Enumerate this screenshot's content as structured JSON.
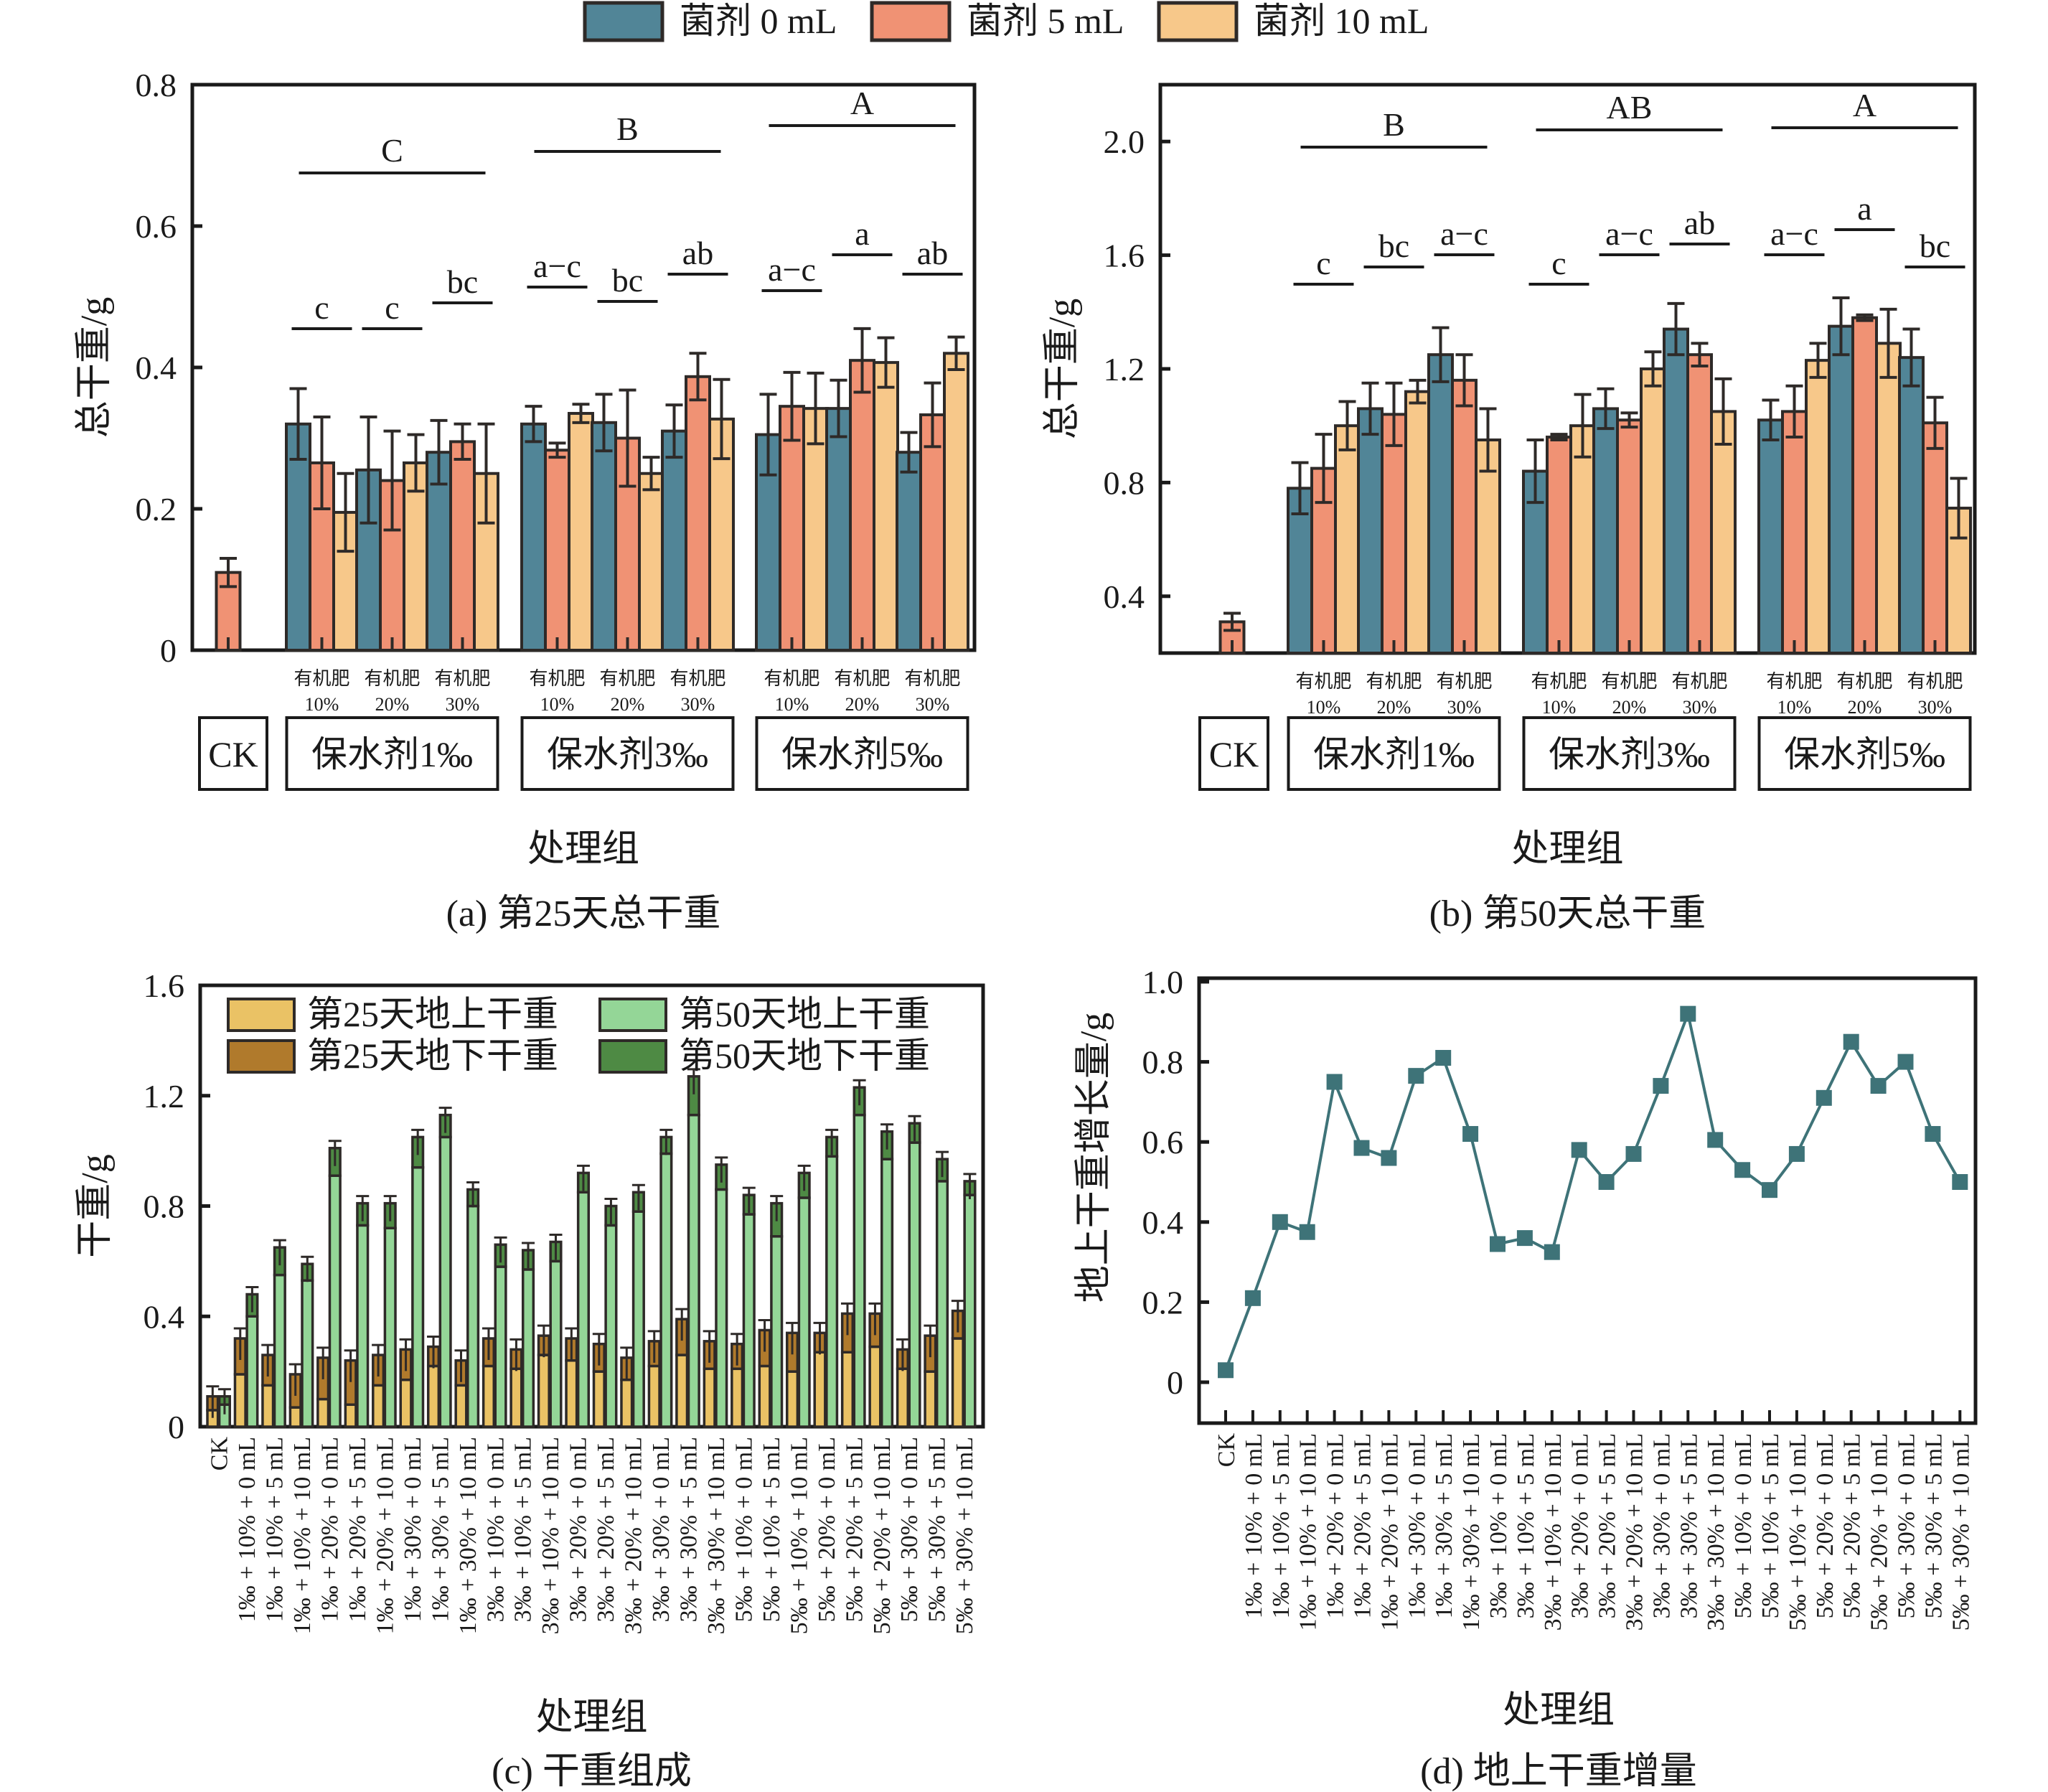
{
  "legend_top": {
    "items": [
      {
        "label": "菌剂 0 mL",
        "color": "#518597"
      },
      {
        "label": "菌剂 5 mL",
        "color": "#F09274"
      },
      {
        "label": "菌剂 10 mL",
        "color": "#F7C88A"
      }
    ]
  },
  "chart_data": [
    {
      "id": "a",
      "type": "bar",
      "title": "(a) 第25天总干重",
      "xlabel": "处理组",
      "ylabel": "总干重/g",
      "ylim": [
        0,
        0.8
      ],
      "yticks": [
        0,
        0.2,
        0.4,
        0.6,
        0.8
      ],
      "ytick_labels": [
        "0",
        "0.2",
        "0.4",
        "0.6",
        "0.8"
      ],
      "series_names": [
        "菌剂 0 mL",
        "菌剂 5 mL",
        "菌剂 10 mL"
      ],
      "ck": {
        "value": 0.11,
        "err": 0.02
      },
      "groups": [
        {
          "label": "保水剂1‰",
          "big_letter": "C",
          "subgroups": [
            {
              "label_top": "有机肥",
              "label_bottom": "10%",
              "letter": "c",
              "values": [
                0.32,
                0.265,
                0.195
              ],
              "errs": [
                0.05,
                0.065,
                0.055
              ]
            },
            {
              "label_top": "有机肥",
              "label_bottom": "20%",
              "letter": "c",
              "values": [
                0.255,
                0.24,
                0.265
              ],
              "errs": [
                0.075,
                0.07,
                0.04
              ]
            },
            {
              "label_top": "有机肥",
              "label_bottom": "30%",
              "letter": "bc",
              "values": [
                0.28,
                0.295,
                0.25
              ],
              "errs": [
                0.045,
                0.025,
                0.07
              ]
            }
          ]
        },
        {
          "label": "保水剂3‰",
          "big_letter": "B",
          "subgroups": [
            {
              "label_top": "有机肥",
              "label_bottom": "10%",
              "letter": "a−c",
              "values": [
                0.32,
                0.283,
                0.335
              ],
              "errs": [
                0.025,
                0.01,
                0.013
              ]
            },
            {
              "label_top": "有机肥",
              "label_bottom": "20%",
              "letter": "bc",
              "values": [
                0.322,
                0.3,
                0.25
              ],
              "errs": [
                0.04,
                0.068,
                0.023
              ]
            },
            {
              "label_top": "有机肥",
              "label_bottom": "30%",
              "letter": "ab",
              "values": [
                0.31,
                0.387,
                0.327
              ],
              "errs": [
                0.037,
                0.033,
                0.056
              ]
            }
          ]
        },
        {
          "label": "保水剂5‰",
          "big_letter": "A",
          "subgroups": [
            {
              "label_top": "有机肥",
              "label_bottom": "10%",
              "letter": "a−c",
              "values": [
                0.305,
                0.345,
                0.342
              ],
              "errs": [
                0.057,
                0.048,
                0.05
              ]
            },
            {
              "label_top": "有机肥",
              "label_bottom": "20%",
              "letter": "a",
              "values": [
                0.342,
                0.41,
                0.407
              ],
              "errs": [
                0.04,
                0.045,
                0.035
              ]
            },
            {
              "label_top": "有机肥",
              "label_bottom": "30%",
              "letter": "ab",
              "values": [
                0.28,
                0.333,
                0.42
              ],
              "errs": [
                0.028,
                0.045,
                0.023
              ]
            }
          ]
        }
      ],
      "ck_label": "CK"
    },
    {
      "id": "b",
      "type": "bar",
      "title": "(b) 第50天总干重",
      "xlabel": "处理组",
      "ylabel": "总干重/g",
      "ylim": [
        0.2,
        2.2
      ],
      "yticks": [
        0.4,
        0.8,
        1.2,
        1.6,
        2.0
      ],
      "ytick_labels": [
        "0.4",
        "0.8",
        "1.2",
        "1.6",
        "2.0"
      ],
      "series_names": [
        "菌剂 0 mL",
        "菌剂 5 mL",
        "菌剂 10 mL"
      ],
      "ck": {
        "value": 0.31,
        "err": 0.03
      },
      "groups": [
        {
          "label": "保水剂1‰",
          "big_letter": "B",
          "subgroups": [
            {
              "label_top": "有机肥",
              "label_bottom": "10%",
              "letter": "c",
              "values": [
                0.78,
                0.85,
                1.0
              ],
              "errs": [
                0.09,
                0.12,
                0.085
              ]
            },
            {
              "label_top": "有机肥",
              "label_bottom": "20%",
              "letter": "bc",
              "values": [
                1.06,
                1.04,
                1.12
              ],
              "errs": [
                0.09,
                0.11,
                0.04
              ]
            },
            {
              "label_top": "有机肥",
              "label_bottom": "30%",
              "letter": "a−c",
              "values": [
                1.25,
                1.16,
                0.95
              ],
              "errs": [
                0.095,
                0.09,
                0.11
              ]
            }
          ]
        },
        {
          "label": "保水剂3‰",
          "big_letter": "AB",
          "subgroups": [
            {
              "label_top": "有机肥",
              "label_bottom": "10%",
              "letter": "c",
              "values": [
                0.84,
                0.96,
                1.0
              ],
              "errs": [
                0.11,
                0.01,
                0.11
              ]
            },
            {
              "label_top": "有机肥",
              "label_bottom": "20%",
              "letter": "a−c",
              "values": [
                1.06,
                1.02,
                1.2
              ],
              "errs": [
                0.07,
                0.025,
                0.06
              ]
            },
            {
              "label_top": "有机肥",
              "label_bottom": "30%",
              "letter": "ab",
              "values": [
                1.34,
                1.25,
                1.05
              ],
              "errs": [
                0.09,
                0.04,
                0.115
              ]
            }
          ]
        },
        {
          "label": "保水剂5‰",
          "big_letter": "A",
          "subgroups": [
            {
              "label_top": "有机肥",
              "label_bottom": "10%",
              "letter": "a−c",
              "values": [
                1.02,
                1.05,
                1.23
              ],
              "errs": [
                0.07,
                0.09,
                0.06
              ]
            },
            {
              "label_top": "有机肥",
              "label_bottom": "20%",
              "letter": "a",
              "values": [
                1.35,
                1.38,
                1.29
              ],
              "errs": [
                0.1,
                0.01,
                0.12
              ]
            },
            {
              "label_top": "有机肥",
              "label_bottom": "30%",
              "letter": "bc",
              "values": [
                1.24,
                1.01,
                0.71
              ],
              "errs": [
                0.1,
                0.09,
                0.105
              ]
            }
          ]
        }
      ],
      "ck_label": "CK"
    },
    {
      "id": "c",
      "type": "bar",
      "stacked": true,
      "title": "(c) 干重组成",
      "xlabel": "处理组",
      "ylabel": "干重/g",
      "ylim": [
        0,
        1.6
      ],
      "yticks": [
        0,
        0.4,
        0.8,
        1.2,
        1.6
      ],
      "ytick_labels": [
        "0",
        "0.4",
        "0.8",
        "1.2",
        "1.6"
      ],
      "legend": [
        {
          "label": "第25天地上干重",
          "color": "#EAC265"
        },
        {
          "label": "第50天地上干重",
          "color": "#94D697"
        },
        {
          "label": "第25天地下干重",
          "color": "#B07A2C"
        },
        {
          "label": "第50天地下干重",
          "color": "#4E8A44"
        }
      ],
      "categories": [
        "CK",
        "1‰ + 10% + 0 mL",
        "1‰ + 10% + 5 mL",
        "1‰ + 10% + 10 mL",
        "1‰ + 20% + 0 mL",
        "1‰ + 20% + 5 mL",
        "1‰ + 20% + 10 mL",
        "1‰ + 30% + 0 mL",
        "1‰ + 30% + 5 mL",
        "1‰ + 30% + 10 mL",
        "3‰ + 10% + 0 mL",
        "3‰ + 10% + 5 mL",
        "3‰ + 10% + 10 mL",
        "3‰ + 20% + 0 mL",
        "3‰ + 20% + 5 mL",
        "3‰ + 20% + 10 mL",
        "3‰ + 30% + 0 mL",
        "3‰ + 30% + 5 mL",
        "3‰ + 30% + 10 mL",
        "5‰ + 10% + 0 mL",
        "5‰ + 10% + 5 mL",
        "5‰ + 10% + 10 mL",
        "5‰ + 20% + 0 mL",
        "5‰ + 20% + 5 mL",
        "5‰ + 20% + 10 mL",
        "5‰ + 30% + 0 mL",
        "5‰ + 30% + 5 mL",
        "5‰ + 30% + 10 mL"
      ],
      "series": [
        {
          "name": "第25天地上干重",
          "values": [
            0.06,
            0.19,
            0.15,
            0.07,
            0.1,
            0.08,
            0.15,
            0.17,
            0.22,
            0.15,
            0.22,
            0.21,
            0.26,
            0.24,
            0.2,
            0.17,
            0.22,
            0.26,
            0.21,
            0.21,
            0.22,
            0.2,
            0.27,
            0.27,
            0.29,
            0.21,
            0.2,
            0.32
          ]
        },
        {
          "name": "第25天地下干重",
          "values": [
            0.05,
            0.13,
            0.11,
            0.12,
            0.15,
            0.16,
            0.11,
            0.11,
            0.07,
            0.09,
            0.1,
            0.07,
            0.07,
            0.08,
            0.1,
            0.08,
            0.09,
            0.13,
            0.1,
            0.09,
            0.13,
            0.14,
            0.07,
            0.14,
            0.12,
            0.07,
            0.13,
            0.1
          ]
        },
        {
          "name": "第50天地上干重",
          "values": [
            0.08,
            0.4,
            0.55,
            0.53,
            0.91,
            0.73,
            0.72,
            0.94,
            1.05,
            0.8,
            0.58,
            0.57,
            0.6,
            0.85,
            0.73,
            0.78,
            0.99,
            1.13,
            0.86,
            0.77,
            0.69,
            0.83,
            0.98,
            1.13,
            0.97,
            1.03,
            0.89,
            0.84
          ]
        },
        {
          "name": "第50天地下干重",
          "values": [
            0.03,
            0.08,
            0.1,
            0.06,
            0.1,
            0.08,
            0.09,
            0.11,
            0.08,
            0.06,
            0.08,
            0.07,
            0.07,
            0.07,
            0.07,
            0.07,
            0.06,
            0.14,
            0.09,
            0.07,
            0.12,
            0.09,
            0.07,
            0.1,
            0.1,
            0.07,
            0.08,
            0.05
          ]
        }
      ]
    },
    {
      "id": "d",
      "type": "line",
      "title": "(d) 地上干重增量",
      "xlabel": "处理组",
      "ylabel": "地上干重增长量/g",
      "ylim": [
        -0.2,
        1.0
      ],
      "yticks": [
        0,
        0.2,
        0.4,
        0.6,
        0.8,
        1.0
      ],
      "ytick_labels": [
        "0",
        "0.2",
        "0.4",
        "0.6",
        "0.8",
        "1.0"
      ],
      "color": "#3E7378",
      "categories": [
        "CK",
        "1‰ + 10% + 0 mL",
        "1‰ + 10% + 5 mL",
        "1‰ + 10% + 10 mL",
        "1‰ + 20% + 0 mL",
        "1‰ + 20% + 5 mL",
        "1‰ + 20% + 10 mL",
        "1‰ + 30% + 0 mL",
        "1‰ + 30% + 5 mL",
        "1‰ + 30% + 10 mL",
        "3‰ + 10% + 0 mL",
        "3‰ + 10% + 5 mL",
        "3‰ + 10% + 10 mL",
        "3‰ + 20% + 0 mL",
        "3‰ + 20% + 5 mL",
        "3‰ + 20% + 10 mL",
        "3‰ + 30% + 0 mL",
        "3‰ + 30% + 5 mL",
        "3‰ + 30% + 10 mL",
        "5‰ + 10% + 0 mL",
        "5‰ + 10% + 5 mL",
        "5‰ + 10% + 10 mL",
        "5‰ + 20% + 0 mL",
        "5‰ + 20% + 5 mL",
        "5‰ + 20% + 10 mL",
        "5‰ + 30% + 0 mL",
        "5‰ + 30% + 5 mL",
        "5‰ + 30% + 10 mL"
      ],
      "values": [
        0.03,
        0.21,
        0.4,
        0.375,
        0.75,
        0.585,
        0.56,
        0.765,
        0.81,
        0.62,
        0.345,
        0.36,
        0.325,
        0.58,
        0.5,
        0.57,
        0.74,
        0.92,
        0.605,
        0.53,
        0.48,
        0.57,
        0.71,
        0.85,
        0.74,
        0.8,
        0.62,
        0.5
      ]
    }
  ]
}
